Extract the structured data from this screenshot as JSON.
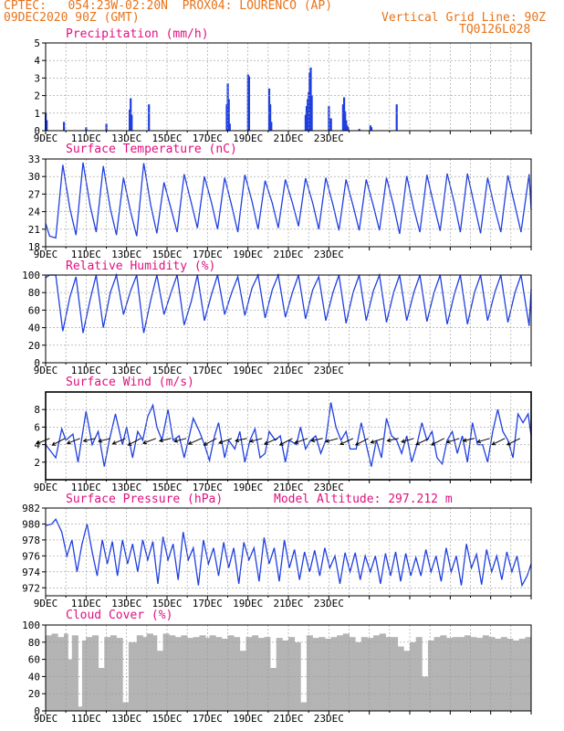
{
  "header": {
    "line1": "CPTEC:   054:23W-02:20N  PROX04: LOURENCO (AP)",
    "line2": "09DEC2020 90Z (GMT)",
    "grid_line_label": "Vertical Grid Line: 90Z",
    "code": "TQ0126L028",
    "model_altitude": "Model Altitude: 297.212  m"
  },
  "colors": {
    "header": "#e8731a",
    "title": "#e0107f",
    "series": "#1f3fe0",
    "cloud": "#b4b4b4",
    "grid": "#999999",
    "axis": "#000000"
  },
  "x_labels": [
    "9DEC",
    "11DEC",
    "13DEC",
    "15DEC",
    "17DEC",
    "19DEC",
    "21DEC",
    "23DEC"
  ],
  "chart_data": [
    {
      "id": "precip",
      "type": "bar",
      "title": "Precipitation (mm/h)",
      "ylim": [
        0,
        5
      ],
      "yticks": [
        0,
        1,
        2,
        3,
        4,
        5
      ],
      "x_days": [
        0.0,
        0.05,
        0.9,
        2.0,
        3.0,
        4.15,
        4.2,
        4.25,
        5.1,
        8.95,
        9.0,
        9.05,
        9.1,
        10.0,
        10.05,
        11.05,
        11.1,
        11.15,
        12.85,
        12.9,
        12.95,
        13.0,
        13.05,
        13.1,
        13.15,
        14.0,
        14.1,
        14.7,
        14.75,
        14.8,
        14.85,
        14.9,
        14.95,
        15.5,
        16.05,
        16.1,
        17.35
      ],
      "values": [
        1.0,
        0.6,
        0.5,
        0.2,
        0.4,
        1.2,
        1.85,
        0.9,
        1.5,
        1.5,
        2.7,
        1.8,
        0.4,
        3.2,
        3.1,
        2.4,
        1.5,
        0.5,
        0.9,
        1.4,
        1.8,
        2.2,
        3.3,
        3.6,
        2.0,
        1.4,
        0.7,
        1.5,
        1.9,
        1.1,
        0.6,
        0.3,
        0.2,
        0.1,
        0.3,
        0.2,
        1.5
      ]
    },
    {
      "id": "temp",
      "type": "line",
      "title": "Surface Temperature (nC)",
      "ylim": [
        18,
        33
      ],
      "yticks": [
        18,
        21,
        24,
        27,
        30,
        33
      ],
      "x_days": [
        0,
        0.2,
        0.5,
        0.85,
        1.2,
        1.5,
        1.85,
        2.2,
        2.5,
        2.85,
        3.2,
        3.5,
        3.85,
        4.2,
        4.5,
        4.85,
        5.2,
        5.5,
        5.85,
        6.2,
        6.5,
        6.85,
        7.2,
        7.5,
        7.85,
        8.2,
        8.5,
        8.85,
        9.2,
        9.5,
        9.85,
        10.2,
        10.5,
        10.85,
        11.2,
        11.5,
        11.85,
        12.2,
        12.5,
        12.85,
        13.2,
        13.5,
        13.85,
        14.2,
        14.5,
        14.85,
        15.2,
        15.5,
        15.85,
        16.2,
        16.5,
        16.85,
        17.2,
        17.5,
        17.85,
        18.2,
        18.5,
        18.85,
        19.2,
        19.5,
        19.85,
        20.2,
        20.5,
        20.85,
        21.2,
        21.5,
        21.85,
        22.2,
        22.5,
        22.85,
        23.2,
        23.5,
        23.9,
        24.0
      ],
      "values": [
        22,
        19.8,
        19.5,
        32.0,
        24.5,
        20.0,
        32.4,
        25.0,
        20.5,
        31.8,
        24.5,
        20.0,
        29.8,
        24.0,
        19.8,
        32.3,
        25.0,
        20.3,
        29.0,
        24.5,
        20.5,
        30.4,
        25.5,
        21.2,
        30.0,
        25.5,
        21.0,
        29.8,
        25.0,
        20.5,
        30.3,
        25.8,
        21.0,
        29.3,
        25.5,
        21.2,
        29.5,
        25.5,
        21.5,
        29.7,
        25.5,
        21.0,
        29.8,
        25.2,
        20.8,
        29.5,
        25.0,
        20.8,
        29.5,
        25.0,
        20.8,
        29.8,
        25.0,
        20.2,
        30.1,
        24.5,
        20.5,
        30.3,
        25.0,
        20.7,
        30.5,
        25.5,
        20.5,
        30.5,
        25.0,
        20.3,
        29.8,
        24.5,
        20.5,
        30.2,
        25.0,
        20.5,
        30.4,
        24.3
      ]
    },
    {
      "id": "rh",
      "type": "line",
      "title": "Relative Humidity (%)",
      "ylim": [
        0,
        100
      ],
      "yticks": [
        0,
        20,
        40,
        60,
        80,
        100
      ],
      "x_days": [
        0,
        0.2,
        0.5,
        0.85,
        1.2,
        1.5,
        1.85,
        2.2,
        2.5,
        2.85,
        3.2,
        3.5,
        3.85,
        4.2,
        4.5,
        4.85,
        5.2,
        5.5,
        5.85,
        6.2,
        6.5,
        6.85,
        7.2,
        7.5,
        7.85,
        8.2,
        8.5,
        8.85,
        9.2,
        9.5,
        9.85,
        10.2,
        10.5,
        10.85,
        11.2,
        11.5,
        11.85,
        12.2,
        12.5,
        12.85,
        13.2,
        13.5,
        13.85,
        14.2,
        14.5,
        14.85,
        15.2,
        15.5,
        15.85,
        16.2,
        16.5,
        16.85,
        17.2,
        17.5,
        17.85,
        18.2,
        18.5,
        18.85,
        19.2,
        19.5,
        19.85,
        20.2,
        20.5,
        20.85,
        21.2,
        21.5,
        21.85,
        22.2,
        22.5,
        22.85,
        23.2,
        23.5,
        23.9,
        24.0
      ],
      "values": [
        97,
        100,
        100,
        36,
        75,
        98,
        34,
        72,
        100,
        40,
        80,
        100,
        55,
        82,
        100,
        34,
        72,
        100,
        55,
        80,
        100,
        43,
        70,
        100,
        48,
        78,
        100,
        55,
        80,
        98,
        54,
        85,
        100,
        51,
        83,
        100,
        52,
        80,
        100,
        50,
        83,
        98,
        48,
        80,
        100,
        45,
        80,
        100,
        48,
        82,
        100,
        46,
        80,
        100,
        48,
        80,
        100,
        47,
        80,
        100,
        44,
        78,
        100,
        44,
        80,
        100,
        48,
        80,
        100,
        46,
        80,
        100,
        42,
        84
      ]
    },
    {
      "id": "wind",
      "type": "line",
      "title": "Surface Wind (m/s)",
      "ylim": [
        0,
        10
      ],
      "yticks": [
        2,
        4,
        6,
        8
      ],
      "x_days": [
        0,
        0.5,
        0.8,
        1.0,
        1.35,
        1.6,
        2.0,
        2.3,
        2.6,
        2.9,
        3.15,
        3.45,
        3.8,
        4.0,
        4.3,
        4.55,
        4.8,
        5.05,
        5.3,
        5.5,
        5.75,
        6.05,
        6.3,
        6.6,
        6.85,
        7.05,
        7.3,
        7.6,
        7.85,
        8.1,
        8.35,
        8.55,
        8.85,
        9.05,
        9.35,
        9.6,
        9.85,
        10.1,
        10.35,
        10.6,
        10.85,
        11.05,
        11.35,
        11.6,
        11.85,
        12.05,
        12.4,
        12.6,
        12.85,
        13.1,
        13.35,
        13.6,
        13.85,
        14.1,
        14.35,
        14.6,
        14.85,
        15.05,
        15.35,
        15.6,
        15.85,
        16.1,
        16.35,
        16.6,
        16.85,
        17.1,
        17.35,
        17.6,
        17.85,
        18.1,
        18.35,
        18.6,
        18.85,
        19.1,
        19.35,
        19.6,
        19.85,
        20.1,
        20.35,
        20.6,
        20.85,
        21.1,
        21.35,
        21.6,
        21.85,
        22.1,
        22.35,
        22.6,
        22.85,
        23.1,
        23.35,
        23.6,
        23.85,
        24.0
      ],
      "values": [
        4,
        2.5,
        5.8,
        4.5,
        5.2,
        2.0,
        7.8,
        4.0,
        5.5,
        1.5,
        4.5,
        7.5,
        4.0,
        6.0,
        2.5,
        5.5,
        4.5,
        7.2,
        8.5,
        6.0,
        4.5,
        8.0,
        4.5,
        5.0,
        2.5,
        4.5,
        7.0,
        5.5,
        4.0,
        2.2,
        5.0,
        6.5,
        2.5,
        4.5,
        3.5,
        5.5,
        2.0,
        4.5,
        5.8,
        2.5,
        3.0,
        5.5,
        4.5,
        5.0,
        2.0,
        4.5,
        4.0,
        6.0,
        3.5,
        4.5,
        5.0,
        3.0,
        4.5,
        8.8,
        6.0,
        4.5,
        5.5,
        3.5,
        3.5,
        6.5,
        4.0,
        1.5,
        4.5,
        2.5,
        7.0,
        5.0,
        4.5,
        3.0,
        5.0,
        2.0,
        4.0,
        6.5,
        4.5,
        5.5,
        2.5,
        1.8,
        4.5,
        5.5,
        3.0,
        5.0,
        2.0,
        6.5,
        4.0,
        4.0,
        2.0,
        5.5,
        8.0,
        5.5,
        4.5,
        2.5,
        7.5,
        6.5,
        7.5,
        5.0
      ]
    },
    {
      "id": "pressure",
      "type": "line",
      "title": "Surface Pressure (hPa)",
      "ylim": [
        971,
        982
      ],
      "yticks": [
        972,
        974,
        976,
        978,
        980,
        982
      ],
      "x_days": [
        0,
        0.3,
        0.5,
        0.8,
        1.05,
        1.3,
        1.55,
        1.8,
        2.05,
        2.3,
        2.55,
        2.8,
        3.05,
        3.3,
        3.55,
        3.8,
        4.05,
        4.3,
        4.55,
        4.8,
        5.05,
        5.3,
        5.55,
        5.8,
        6.05,
        6.3,
        6.55,
        6.8,
        7.05,
        7.3,
        7.55,
        7.8,
        8.05,
        8.3,
        8.55,
        8.8,
        9.05,
        9.3,
        9.55,
        9.8,
        10.05,
        10.3,
        10.55,
        10.8,
        11.05,
        11.3,
        11.55,
        11.8,
        12.05,
        12.3,
        12.55,
        12.8,
        13.05,
        13.3,
        13.55,
        13.8,
        14.05,
        14.3,
        14.55,
        14.8,
        15.05,
        15.3,
        15.55,
        15.8,
        16.05,
        16.3,
        16.55,
        16.8,
        17.05,
        17.3,
        17.55,
        17.8,
        18.05,
        18.3,
        18.55,
        18.8,
        19.05,
        19.3,
        19.55,
        19.8,
        20.05,
        20.3,
        20.55,
        20.8,
        21.05,
        21.3,
        21.55,
        21.8,
        22.05,
        22.3,
        22.55,
        22.8,
        23.05,
        23.3,
        23.55,
        23.8,
        24.0
      ],
      "values": [
        979.8,
        980.0,
        980.6,
        979.0,
        976.0,
        978.0,
        974.0,
        977.5,
        980.0,
        976.5,
        973.5,
        978.0,
        975.0,
        977.8,
        973.5,
        978.0,
        975.0,
        977.5,
        974.0,
        978.0,
        975.5,
        977.8,
        972.5,
        978.4,
        975.5,
        977.5,
        973.0,
        979.0,
        975.5,
        977.0,
        972.3,
        978.0,
        975.0,
        977.0,
        973.5,
        977.7,
        974.5,
        977.0,
        972.5,
        977.7,
        975.5,
        977.0,
        972.8,
        978.3,
        975.0,
        977.0,
        972.8,
        978.0,
        974.5,
        976.8,
        973.0,
        976.5,
        974.0,
        976.7,
        973.5,
        977.0,
        974.5,
        976.0,
        972.5,
        976.4,
        974.0,
        976.4,
        973.0,
        976.0,
        974.0,
        976.0,
        972.5,
        976.3,
        973.5,
        976.5,
        972.8,
        976.3,
        973.5,
        975.8,
        973.5,
        976.8,
        974.0,
        976.0,
        972.8,
        977.0,
        974.0,
        976.0,
        972.3,
        977.5,
        974.5,
        976.2,
        972.4,
        976.8,
        974.0,
        976.0,
        973.0,
        976.5,
        974.0,
        976.0,
        972.3,
        973.5,
        975.0
      ]
    },
    {
      "id": "cloud",
      "type": "area",
      "title": "Cloud Cover (%)",
      "ylim": [
        0,
        100
      ],
      "yticks": [
        0,
        20,
        40,
        60,
        80,
        100
      ],
      "x_days": [
        0,
        0.3,
        0.6,
        0.9,
        1.1,
        1.3,
        1.6,
        1.8,
        2.0,
        2.3,
        2.6,
        2.9,
        3.2,
        3.5,
        3.8,
        4.1,
        4.5,
        4.8,
        5.0,
        5.3,
        5.5,
        5.8,
        6.1,
        6.4,
        6.7,
        7.0,
        7.3,
        7.6,
        7.9,
        8.1,
        8.4,
        8.7,
        9.0,
        9.3,
        9.6,
        9.9,
        10.2,
        10.5,
        10.8,
        11.1,
        11.4,
        11.7,
        12.0,
        12.3,
        12.6,
        12.9,
        13.2,
        13.5,
        13.8,
        14.1,
        14.4,
        14.7,
        15.0,
        15.3,
        15.6,
        15.9,
        16.2,
        16.5,
        16.8,
        17.1,
        17.4,
        17.7,
        18.0,
        18.3,
        18.6,
        18.9,
        19.2,
        19.5,
        19.8,
        20.1,
        20.4,
        20.7,
        21.0,
        21.3,
        21.6,
        21.9,
        22.2,
        22.5,
        22.8,
        23.1,
        23.4,
        23.7,
        24.0
      ],
      "values": [
        88,
        90,
        86,
        90,
        60,
        88,
        5,
        82,
        86,
        88,
        50,
        86,
        88,
        85,
        10,
        80,
        88,
        86,
        90,
        88,
        70,
        90,
        88,
        86,
        88,
        85,
        86,
        88,
        85,
        88,
        86,
        84,
        88,
        86,
        70,
        86,
        88,
        85,
        86,
        50,
        85,
        82,
        86,
        80,
        10,
        88,
        85,
        86,
        84,
        86,
        88,
        90,
        86,
        80,
        86,
        85,
        88,
        90,
        86,
        86,
        75,
        70,
        80,
        86,
        40,
        82,
        86,
        88,
        85,
        86,
        86,
        88,
        86,
        85,
        88,
        86,
        84,
        86,
        84,
        82,
        84,
        86,
        84
      ]
    }
  ]
}
